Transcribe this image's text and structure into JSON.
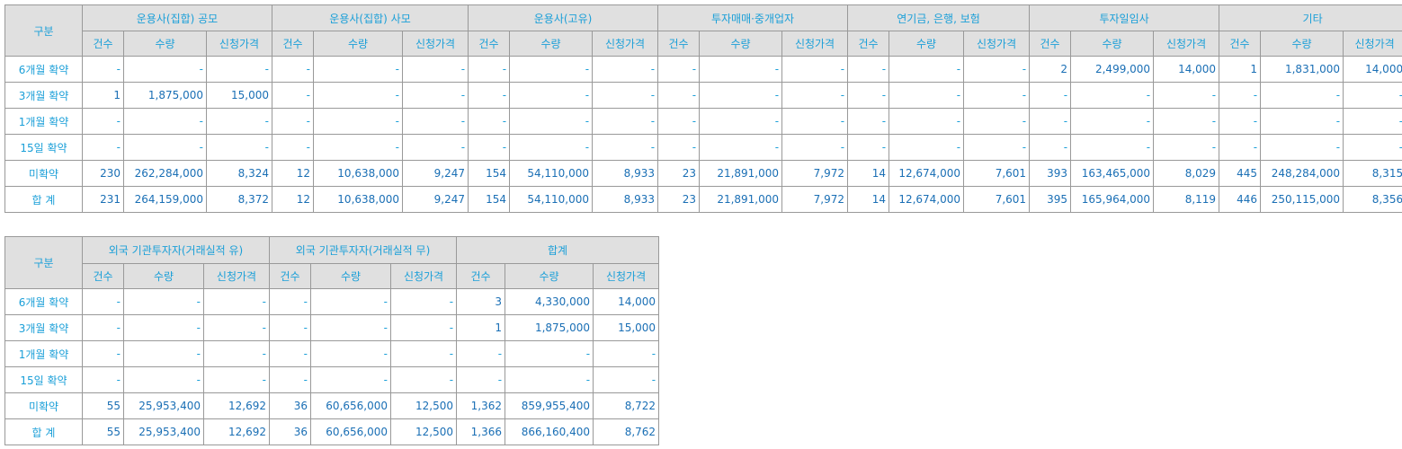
{
  "colors": {
    "text": "#1a9fd8",
    "value_text": "#1a6fb5",
    "header_bg": "#e0e0e0",
    "border": "#999999"
  },
  "sub_headers": [
    "건수",
    "수량",
    "신청가격"
  ],
  "table1": {
    "corner": "구분",
    "groups": [
      "운용사(집합) 공모",
      "운용사(집합) 사모",
      "운용사(고유)",
      "투자매매·중개업자",
      "연기금, 은행, 보험",
      "투자일임사",
      "기타"
    ],
    "rows": [
      {
        "label": "6개월 확약",
        "cells": [
          "-",
          "-",
          "-",
          "-",
          "-",
          "-",
          "-",
          "-",
          "-",
          "-",
          "-",
          "-",
          "-",
          "-",
          "-",
          "2",
          "2,499,000",
          "14,000",
          "1",
          "1,831,000",
          "14,000"
        ]
      },
      {
        "label": "3개월 확약",
        "cells": [
          "1",
          "1,875,000",
          "15,000",
          "-",
          "-",
          "-",
          "-",
          "-",
          "-",
          "-",
          "-",
          "-",
          "-",
          "-",
          "-",
          "-",
          "-",
          "-",
          "-",
          "-",
          "-"
        ]
      },
      {
        "label": "1개월 확약",
        "cells": [
          "-",
          "-",
          "-",
          "-",
          "-",
          "-",
          "-",
          "-",
          "-",
          "-",
          "-",
          "-",
          "-",
          "-",
          "-",
          "-",
          "-",
          "-",
          "-",
          "-",
          "-"
        ]
      },
      {
        "label": "15일 확약",
        "cells": [
          "-",
          "-",
          "-",
          "-",
          "-",
          "-",
          "-",
          "-",
          "-",
          "-",
          "-",
          "-",
          "-",
          "-",
          "-",
          "-",
          "-",
          "-",
          "-",
          "-",
          "-"
        ]
      },
      {
        "label": "미확약",
        "cells": [
          "230",
          "262,284,000",
          "8,324",
          "12",
          "10,638,000",
          "9,247",
          "154",
          "54,110,000",
          "8,933",
          "23",
          "21,891,000",
          "7,972",
          "14",
          "12,674,000",
          "7,601",
          "393",
          "163,465,000",
          "8,029",
          "445",
          "248,284,000",
          "8,315"
        ]
      },
      {
        "label": "합 계",
        "cells": [
          "231",
          "264,159,000",
          "8,372",
          "12",
          "10,638,000",
          "9,247",
          "154",
          "54,110,000",
          "8,933",
          "23",
          "21,891,000",
          "7,972",
          "14",
          "12,674,000",
          "7,601",
          "395",
          "165,964,000",
          "8,119",
          "446",
          "250,115,000",
          "8,356"
        ]
      }
    ]
  },
  "table2": {
    "corner": "구분",
    "groups": [
      "외국 기관투자자(거래실적 유)",
      "외국 기관투자자(거래실적 무)",
      "합계"
    ],
    "rows": [
      {
        "label": "6개월 확약",
        "cells": [
          "-",
          "-",
          "-",
          "-",
          "-",
          "-",
          "3",
          "4,330,000",
          "14,000"
        ]
      },
      {
        "label": "3개월 확약",
        "cells": [
          "-",
          "-",
          "-",
          "-",
          "-",
          "-",
          "1",
          "1,875,000",
          "15,000"
        ]
      },
      {
        "label": "1개월 확약",
        "cells": [
          "-",
          "-",
          "-",
          "-",
          "-",
          "-",
          "-",
          "-",
          "-"
        ]
      },
      {
        "label": "15일 확약",
        "cells": [
          "-",
          "-",
          "-",
          "-",
          "-",
          "-",
          "-",
          "-",
          "-"
        ]
      },
      {
        "label": "미확약",
        "cells": [
          "55",
          "25,953,400",
          "12,692",
          "36",
          "60,656,000",
          "12,500",
          "1,362",
          "859,955,400",
          "8,722"
        ]
      },
      {
        "label": "합 계",
        "cells": [
          "55",
          "25,953,400",
          "12,692",
          "36",
          "60,656,000",
          "12,500",
          "1,366",
          "866,160,400",
          "8,762"
        ]
      }
    ]
  }
}
